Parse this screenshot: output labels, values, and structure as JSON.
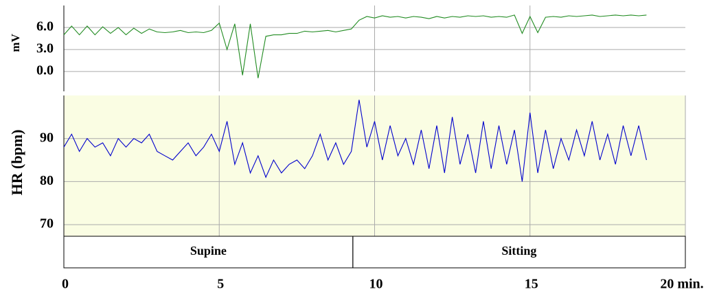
{
  "chart_data": [
    {
      "type": "line",
      "ylabel": "mV",
      "x": [
        0,
        0.25,
        0.5,
        0.75,
        1,
        1.25,
        1.5,
        1.75,
        2,
        2.25,
        2.5,
        2.75,
        3,
        3.25,
        3.5,
        3.75,
        4,
        4.25,
        4.5,
        4.75,
        5,
        5.25,
        5.5,
        5.75,
        6,
        6.25,
        6.5,
        6.75,
        7,
        7.25,
        7.5,
        7.75,
        8,
        8.25,
        8.5,
        8.75,
        9,
        9.25,
        9.5,
        9.75,
        10,
        10.25,
        10.5,
        10.75,
        11,
        11.25,
        11.5,
        11.75,
        12,
        12.25,
        12.5,
        12.75,
        13,
        13.25,
        13.5,
        13.75,
        14,
        14.25,
        14.5,
        14.75,
        15,
        15.25,
        15.5,
        15.75,
        16,
        16.25,
        16.5,
        16.75,
        17,
        17.25,
        17.5,
        17.75,
        18,
        18.25,
        18.5,
        18.75
      ],
      "series": [
        {
          "color": "#1f8a1f",
          "values": [
            5.0,
            6.2,
            5.0,
            6.2,
            5.0,
            6.1,
            5.2,
            6.0,
            5.0,
            5.9,
            5.2,
            5.8,
            5.4,
            5.3,
            5.4,
            5.6,
            5.3,
            5.4,
            5.3,
            5.6,
            6.6,
            3.0,
            6.5,
            -0.5,
            6.5,
            -0.9,
            4.8,
            5.0,
            5.0,
            5.2,
            5.2,
            5.5,
            5.4,
            5.5,
            5.6,
            5.4,
            5.6,
            5.8,
            7.0,
            7.5,
            7.3,
            7.6,
            7.4,
            7.5,
            7.3,
            7.5,
            7.4,
            7.2,
            7.5,
            7.3,
            7.5,
            7.4,
            7.6,
            7.5,
            7.6,
            7.4,
            7.5,
            7.4,
            7.7,
            5.2,
            7.5,
            5.3,
            7.4,
            7.5,
            7.4,
            7.6,
            7.5,
            7.6,
            7.7,
            7.5,
            7.6,
            7.7,
            7.6,
            7.7,
            7.6,
            7.7
          ]
        }
      ],
      "xlim": [
        0,
        20
      ],
      "ylim": [
        -2.7,
        9.0
      ],
      "yticks": [
        {
          "value": 6,
          "label": "6.0"
        },
        {
          "value": 3,
          "label": "3.0"
        },
        {
          "value": 0,
          "label": "0.0"
        }
      ],
      "xticks": [
        5,
        10,
        15
      ],
      "grid": true
    },
    {
      "type": "line",
      "ylabel": "HR (bpm)",
      "x": [
        0,
        0.25,
        0.5,
        0.75,
        1,
        1.25,
        1.5,
        1.75,
        2,
        2.25,
        2.5,
        2.75,
        3,
        3.25,
        3.5,
        3.75,
        4,
        4.25,
        4.5,
        4.75,
        5,
        5.25,
        5.5,
        5.75,
        6,
        6.25,
        6.5,
        6.75,
        7,
        7.25,
        7.5,
        7.75,
        8,
        8.25,
        8.5,
        8.75,
        9,
        9.25,
        9.5,
        9.75,
        10,
        10.25,
        10.5,
        10.75,
        11,
        11.25,
        11.5,
        11.75,
        12,
        12.25,
        12.5,
        12.75,
        13,
        13.25,
        13.5,
        13.75,
        14,
        14.25,
        14.5,
        14.75,
        15,
        15.25,
        15.5,
        15.75,
        16,
        16.25,
        16.5,
        16.75,
        17,
        17.25,
        17.5,
        17.75,
        18,
        18.25,
        18.5,
        18.75
      ],
      "series": [
        {
          "color": "#0000cc",
          "values": [
            88,
            91,
            87,
            90,
            88,
            89,
            86,
            90,
            88,
            90,
            89,
            91,
            87,
            86,
            85,
            87,
            89,
            86,
            88,
            91,
            87,
            94,
            84,
            89,
            82,
            86,
            81,
            85,
            82,
            84,
            85,
            83,
            86,
            91,
            85,
            89,
            84,
            87,
            99,
            88,
            94,
            85,
            93,
            86,
            90,
            84,
            92,
            83,
            93,
            82,
            95,
            84,
            91,
            82,
            94,
            83,
            93,
            84,
            92,
            80,
            96,
            82,
            92,
            83,
            90,
            85,
            92,
            86,
            94,
            85,
            91,
            84,
            93,
            86,
            93,
            85
          ]
        }
      ],
      "xlim": [
        0,
        20
      ],
      "ylim": [
        67.3,
        100
      ],
      "yticks": [
        90,
        80,
        70
      ],
      "xticks": [
        0,
        5,
        10,
        15,
        {
          "value": 20,
          "label": "20 min."
        }
      ],
      "grid": true,
      "background": "#fafde3",
      "bands": [
        {
          "label": "Supine",
          "xlim": [
            0,
            9.3
          ]
        },
        {
          "label": "Sitting",
          "xlim": [
            9.3,
            20
          ]
        }
      ]
    }
  ]
}
